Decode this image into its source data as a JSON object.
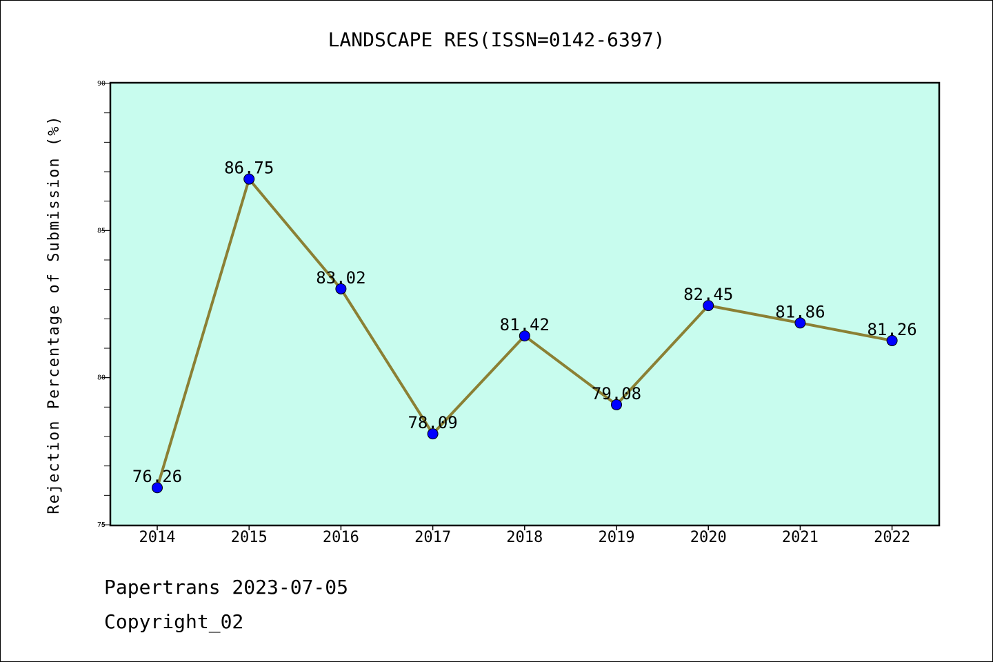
{
  "chart_data": {
    "type": "line",
    "title": "LANDSCAPE RES(ISSN=0142-6397)",
    "xlabel": "",
    "ylabel": "Rejection Percentage of Submission (%)",
    "categories": [
      "2014",
      "2015",
      "2016",
      "2017",
      "2018",
      "2019",
      "2020",
      "2021",
      "2022"
    ],
    "series": [
      {
        "values": [
          76.26,
          86.75,
          83.02,
          78.09,
          81.42,
          79.08,
          82.45,
          81.86,
          81.26
        ],
        "labels": [
          "76.26",
          "86.75",
          "83.02",
          "78.09",
          "81.42",
          "79.08",
          "82.45",
          "81.86",
          "81.26"
        ],
        "line_color": "#8b8034",
        "marker_color": "#0000ff"
      }
    ],
    "ylim": [
      75,
      90
    ],
    "y_ticks": [
      75,
      80,
      85,
      90
    ],
    "y_tick_labels": [
      "75",
      "80",
      "85",
      "90"
    ],
    "y_minor_step": 1,
    "grid": false,
    "legend": "none",
    "plot_background": "#c8fcee"
  },
  "footer": {
    "line1": "Papertrans 2023-07-05",
    "line2": "Copyright_02"
  }
}
